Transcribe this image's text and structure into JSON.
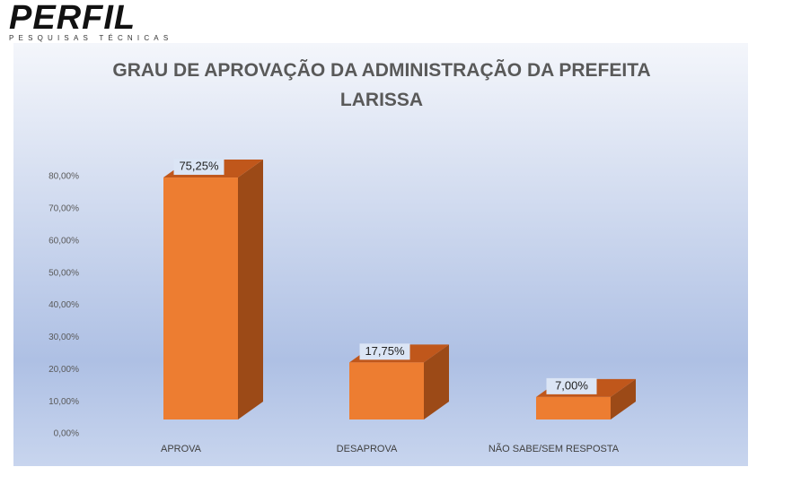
{
  "logo": {
    "name": "PERFIL",
    "tagline": "PESQUISAS TÉCNICAS"
  },
  "chart_data": {
    "type": "bar3d",
    "title": "GRAU DE APROVAÇÃO DA ADMINISTRAÇÃO DA PREFEITA LARISSA",
    "categories": [
      "APROVA",
      "DESAPROVA",
      "NÃO SABE/SEM RESPOSTA"
    ],
    "values": [
      75.25,
      17.75,
      7.0
    ],
    "value_labels": [
      "75,25%",
      "17,75%",
      "7,00%"
    ],
    "color": "#ed7d31",
    "ylim": [
      0,
      80
    ],
    "yticks": [
      {
        "value": 0,
        "label": "0,00%"
      },
      {
        "value": 10,
        "label": "10,00%"
      },
      {
        "value": 20,
        "label": "20,00%"
      },
      {
        "value": 30,
        "label": "30,00%"
      },
      {
        "value": 40,
        "label": "40,00%"
      },
      {
        "value": 50,
        "label": "50,00%"
      },
      {
        "value": 60,
        "label": "60,00%"
      },
      {
        "value": 70,
        "label": "70,00%"
      },
      {
        "value": 80,
        "label": "80,00%"
      }
    ]
  }
}
